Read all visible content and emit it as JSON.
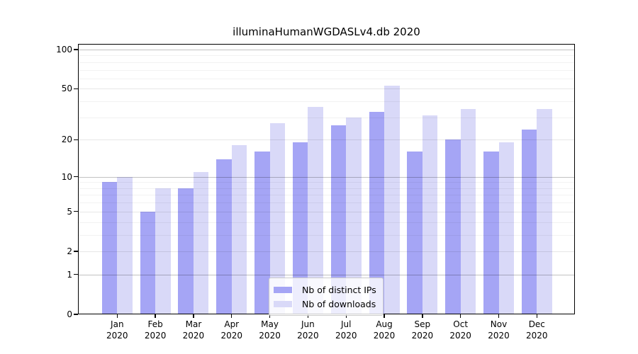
{
  "chart_data": {
    "type": "bar",
    "title": "illuminaHumanWGDASLv4.db 2020",
    "categories": [
      "Jan",
      "Feb",
      "Mar",
      "Apr",
      "May",
      "Jun",
      "Jul",
      "Aug",
      "Sep",
      "Oct",
      "Nov",
      "Dec"
    ],
    "x_tick_year_line": "2020",
    "series": [
      {
        "name": "Nb of distinct IPs",
        "color": "#a5a5f5",
        "values": [
          9,
          5,
          8,
          14,
          16,
          19,
          26,
          33,
          16,
          20,
          16,
          24
        ]
      },
      {
        "name": "Nb of downloads",
        "color": "#d9d9f8",
        "values": [
          10,
          8,
          11,
          18,
          27,
          36,
          30,
          53,
          31,
          35,
          19,
          35
        ]
      }
    ],
    "y_scale": "log10(value+1)",
    "y_ticks": [
      100,
      50,
      20,
      10,
      5,
      2,
      1,
      0
    ],
    "ylim": [
      0,
      110
    ],
    "xlabel": "",
    "ylabel": "",
    "grid": "on",
    "legend_position": "inside-bottom-center",
    "colors": {
      "axis": "#000000",
      "grid_decade": "#c3c3c3",
      "grid_mid": "#e7e7e7",
      "grid_minor": "#f2f2f2",
      "background": "#ffffff"
    }
  }
}
